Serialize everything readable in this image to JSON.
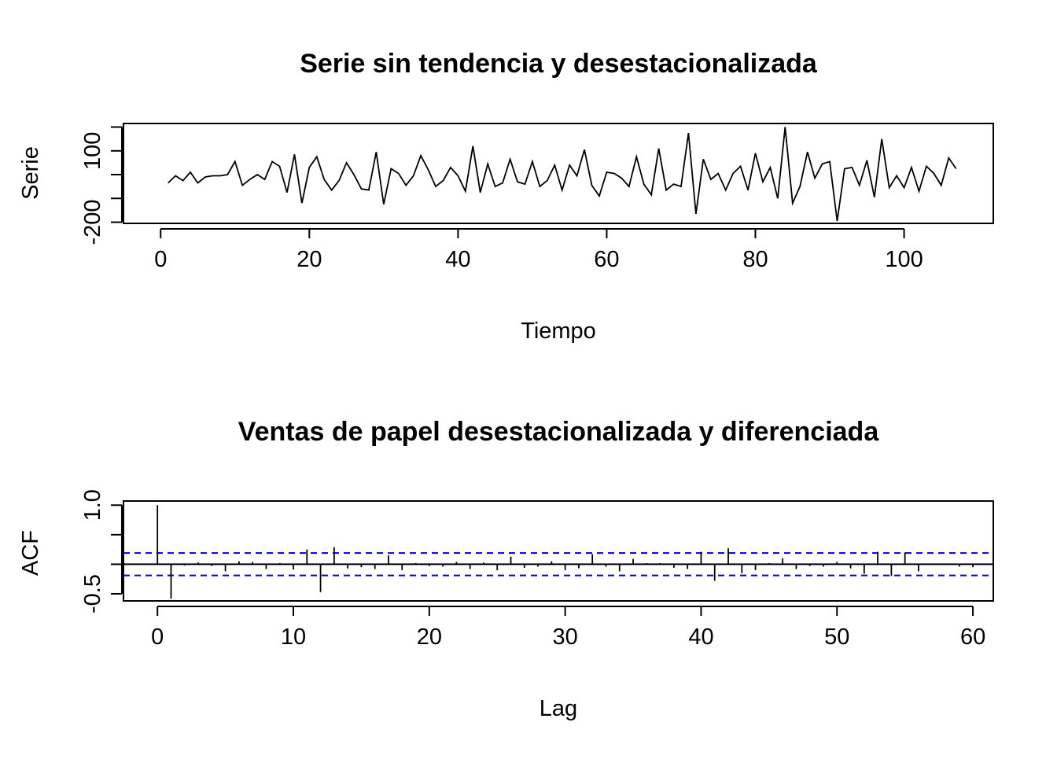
{
  "chart_data": [
    {
      "type": "line",
      "title": "Serie sin tendencia y desestacionalizada",
      "xlabel": "Tiempo",
      "ylabel": "Serie",
      "xlim": [
        -5,
        112
      ],
      "ylim": [
        -205,
        215
      ],
      "x_ticks": [
        0,
        20,
        40,
        60,
        80,
        100
      ],
      "x_tick_labels": [
        "0",
        "20",
        "40",
        "60",
        "80",
        "100"
      ],
      "y_ticks": [
        -200,
        -100,
        0,
        100,
        200
      ],
      "y_tick_labels": [
        "-200",
        "",
        "",
        "100",
        ""
      ],
      "grid": false,
      "series": [
        {
          "x": [
            1,
            2,
            3,
            4,
            5,
            6,
            7,
            8,
            9,
            10,
            11,
            12,
            13,
            14,
            15,
            16,
            17,
            18,
            19,
            20,
            21,
            22,
            23,
            24,
            25,
            26,
            27,
            28,
            29,
            30,
            31,
            32,
            33,
            34,
            35,
            36,
            37,
            38,
            39,
            40,
            41,
            42,
            43,
            44,
            45,
            46,
            47,
            48,
            49,
            50,
            51,
            52,
            53,
            54,
            55,
            56,
            57,
            58,
            59,
            60,
            61,
            62,
            63,
            64,
            65,
            66,
            67,
            68,
            69,
            70,
            71,
            72,
            73,
            74,
            75,
            76,
            77,
            78,
            79,
            80,
            81,
            82,
            83,
            84,
            85,
            86,
            87,
            88,
            89,
            90,
            91,
            92,
            93,
            94,
            95,
            96,
            97,
            98,
            99,
            100,
            101,
            102,
            103,
            104,
            105,
            106,
            107
          ],
          "values": [
            -35,
            -5,
            -25,
            10,
            -35,
            -10,
            -5,
            -5,
            0,
            55,
            -45,
            -20,
            0,
            -20,
            55,
            35,
            -75,
            85,
            -120,
            30,
            75,
            -20,
            -65,
            -25,
            50,
            0,
            -60,
            -65,
            95,
            -125,
            25,
            5,
            -45,
            -5,
            80,
            20,
            -50,
            -25,
            30,
            -5,
            -70,
            120,
            -75,
            45,
            -50,
            -35,
            65,
            -30,
            -40,
            55,
            -50,
            -25,
            40,
            -65,
            40,
            -5,
            105,
            -45,
            -90,
            10,
            5,
            -15,
            -50,
            75,
            -40,
            -85,
            110,
            -65,
            -40,
            -50,
            175,
            -165,
            65,
            -20,
            5,
            -65,
            5,
            35,
            -65,
            90,
            -30,
            30,
            -100,
            200,
            -120,
            -50,
            95,
            -15,
            45,
            55,
            -195,
            25,
            30,
            -45,
            60,
            -95,
            150,
            -55,
            -5,
            -55,
            30,
            -70,
            35,
            5,
            -45,
            70,
            25
          ]
        }
      ]
    },
    {
      "type": "bar",
      "title": "Ventas de papel desestacionalizada y diferenciada",
      "xlabel": "Lag",
      "ylabel": "ACF",
      "xlim": [
        -2.5,
        61.5
      ],
      "ylim": [
        -0.62,
        1.07
      ],
      "x_ticks": [
        0,
        10,
        20,
        30,
        40,
        50,
        60
      ],
      "x_tick_labels": [
        "0",
        "10",
        "20",
        "30",
        "40",
        "50",
        "60"
      ],
      "y_ticks": [
        -0.5,
        0,
        0.5,
        1.0
      ],
      "y_tick_labels": [
        "-0.5",
        "",
        "",
        "1.0"
      ],
      "confidence_band": 0.19,
      "grid": false,
      "series": [
        {
          "x": [
            0,
            1,
            2,
            3,
            4,
            5,
            6,
            7,
            8,
            9,
            10,
            11,
            12,
            13,
            14,
            15,
            16,
            17,
            18,
            19,
            20,
            21,
            22,
            23,
            24,
            25,
            26,
            27,
            28,
            29,
            30,
            31,
            32,
            33,
            34,
            35,
            36,
            37,
            38,
            39,
            40,
            41,
            42,
            43,
            44,
            45,
            46,
            47,
            48,
            49,
            50,
            51,
            52,
            53,
            54,
            55,
            56,
            57,
            58,
            59,
            60
          ],
          "values": [
            1.0,
            -0.58,
            -0.02,
            0.03,
            -0.03,
            -0.12,
            0.05,
            0.04,
            -0.08,
            0.02,
            -0.09,
            0.25,
            -0.47,
            0.29,
            -0.07,
            -0.05,
            -0.08,
            0.15,
            -0.1,
            0.02,
            -0.03,
            -0.04,
            0.04,
            -0.08,
            0.03,
            -0.1,
            0.13,
            -0.06,
            -0.04,
            0.05,
            -0.1,
            -0.07,
            0.17,
            -0.04,
            -0.12,
            0.09,
            0.02,
            0.02,
            -0.06,
            -0.08,
            0.21,
            -0.28,
            0.27,
            -0.15,
            -0.1,
            0.02,
            0.1,
            -0.08,
            -0.03,
            -0.04,
            0.04,
            -0.07,
            -0.16,
            0.21,
            -0.2,
            0.2,
            -0.12,
            0.01,
            0.01,
            -0.04,
            -0.05
          ]
        }
      ]
    }
  ]
}
